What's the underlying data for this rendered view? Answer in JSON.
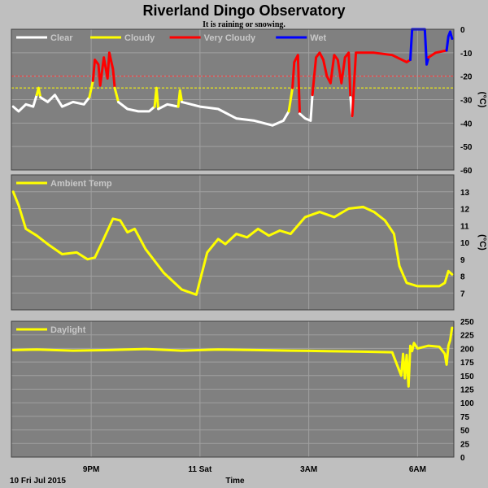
{
  "page": {
    "title": "Riverland Dingo Observatory",
    "subtitle": "It is raining or snowing.",
    "date_label": "10 Fri Jul 2015",
    "xlabel": "Time"
  },
  "colors": {
    "background": "#bfbfbf",
    "panel": "#808080",
    "grid": "#a0a0a0",
    "clear": "#ffffff",
    "cloudy": "#ffff00",
    "very_cloudy": "#ff0000",
    "wet": "#0000ff",
    "threshold_red": "#ff3333",
    "threshold_yellow": "#ffff00"
  },
  "chart_data": {
    "type": "line",
    "x_ticks": [
      {
        "hour": 21,
        "label": "9PM"
      },
      {
        "hour": 24,
        "label": "11 Sat"
      },
      {
        "hour": 27,
        "label": "3AM"
      },
      {
        "hour": 30,
        "label": "6AM"
      }
    ],
    "xlim": [
      18.8,
      31.0
    ],
    "grid": true,
    "panels": [
      {
        "id": "sky",
        "ylabel": "(°C)",
        "ylim": [
          -60,
          0
        ],
        "yticks": [
          0,
          -10,
          -20,
          -30,
          -40,
          -50,
          -60
        ],
        "thresholds": [
          {
            "value": -20,
            "color": "threshold_red"
          },
          {
            "value": -25,
            "color": "threshold_yellow"
          }
        ],
        "legend": [
          {
            "name": "Clear",
            "color": "clear"
          },
          {
            "name": "Cloudy",
            "color": "cloudy"
          },
          {
            "name": "Very Cloudy",
            "color": "very_cloudy"
          },
          {
            "name": "Wet",
            "color": "wet"
          }
        ],
        "series": [
          {
            "condition": "clear",
            "x": [
              18.85,
              19.0,
              19.2,
              19.4,
              19.5
            ],
            "y": [
              -33,
              -35,
              -32,
              -33,
              -28
            ]
          },
          {
            "condition": "cloudy",
            "x": [
              19.5,
              19.55,
              19.6
            ],
            "y": [
              -28,
              -25,
              -29
            ]
          },
          {
            "condition": "clear",
            "x": [
              19.6,
              19.8,
              20.0,
              20.2,
              20.5,
              20.8,
              20.95
            ],
            "y": [
              -29,
              -31,
              -28,
              -33,
              -31,
              -32,
              -29
            ]
          },
          {
            "condition": "cloudy",
            "x": [
              20.95,
              21.05
            ],
            "y": [
              -29,
              -22
            ]
          },
          {
            "condition": "very_cloudy",
            "x": [
              21.05,
              21.1,
              21.2,
              21.25,
              21.35,
              21.45,
              21.5,
              21.6,
              21.65
            ],
            "y": [
              -22,
              -13,
              -15,
              -24,
              -12,
              -21,
              -10,
              -17,
              -25
            ]
          },
          {
            "condition": "cloudy",
            "x": [
              21.65,
              21.75
            ],
            "y": [
              -25,
              -31
            ]
          },
          {
            "condition": "clear",
            "x": [
              21.75,
              22.0,
              22.3,
              22.6,
              22.75
            ],
            "y": [
              -31,
              -34,
              -35,
              -35,
              -33
            ]
          },
          {
            "condition": "cloudy",
            "x": [
              22.75,
              22.8,
              22.85
            ],
            "y": [
              -33,
              -25,
              -34
            ]
          },
          {
            "condition": "clear",
            "x": [
              22.85,
              23.1,
              23.4
            ],
            "y": [
              -34,
              -32,
              -33
            ]
          },
          {
            "condition": "cloudy",
            "x": [
              23.4,
              23.45,
              23.5
            ],
            "y": [
              -33,
              -26,
              -31
            ]
          },
          {
            "condition": "clear",
            "x": [
              23.5,
              24.0,
              24.5,
              25.0,
              25.5,
              26.0,
              26.3,
              26.45
            ],
            "y": [
              -31,
              -33,
              -34,
              -38,
              -39,
              -41,
              -39,
              -35
            ]
          },
          {
            "condition": "cloudy",
            "x": [
              26.45,
              26.55
            ],
            "y": [
              -35,
              -25
            ]
          },
          {
            "condition": "very_cloudy",
            "x": [
              26.55,
              26.6,
              26.7,
              26.75
            ],
            "y": [
              -25,
              -14,
              -11,
              -36
            ]
          },
          {
            "condition": "clear",
            "x": [
              26.75,
              26.9,
              27.05,
              27.1
            ],
            "y": [
              -36,
              -38,
              -39,
              -28
            ]
          },
          {
            "condition": "very_cloudy",
            "x": [
              27.1,
              27.2,
              27.3,
              27.4,
              27.5,
              27.6,
              27.7,
              27.8,
              27.9,
              28.0,
              28.1,
              28.15
            ],
            "y": [
              -28,
              -12,
              -10,
              -13,
              -20,
              -23,
              -11,
              -13,
              -23,
              -12,
              -10,
              -29
            ]
          },
          {
            "condition": "clear",
            "x": [
              28.15,
              28.2
            ],
            "y": [
              -29,
              -37
            ]
          },
          {
            "condition": "very_cloudy",
            "x": [
              28.2,
              28.3,
              28.8,
              29.3,
              29.7,
              29.8
            ],
            "y": [
              -37,
              -10,
              -10,
              -11,
              -14,
              -13
            ]
          },
          {
            "condition": "wet",
            "x": [
              29.8,
              29.85,
              30.2,
              30.25,
              30.3
            ],
            "y": [
              -13,
              0,
              0,
              -15,
              -12
            ]
          },
          {
            "condition": "very_cloudy",
            "x": [
              30.3,
              30.5,
              30.8
            ],
            "y": [
              -12,
              -10,
              -9
            ]
          },
          {
            "condition": "wet",
            "x": [
              30.8,
              30.85,
              30.9,
              30.95
            ],
            "y": [
              -9,
              -3,
              -1,
              -4
            ]
          }
        ]
      },
      {
        "id": "temp",
        "ylabel": "(°C)",
        "ylim": [
          6,
          14
        ],
        "yticks": [
          7,
          8,
          9,
          10,
          11,
          12,
          13
        ],
        "legend": [
          {
            "name": "Ambient Temp",
            "color": "cloudy"
          }
        ],
        "series": [
          {
            "condition": "cloudy",
            "x": [
              18.85,
              19.0,
              19.2,
              19.5,
              19.8,
              20.2,
              20.6,
              20.9,
              21.1,
              21.3,
              21.6,
              21.8,
              22.0,
              22.2,
              22.5,
              23.0,
              23.5,
              23.9,
              24.2,
              24.5,
              24.7,
              25.0,
              25.3,
              25.6,
              25.9,
              26.2,
              26.5,
              26.9,
              27.3,
              27.7,
              28.1,
              28.5,
              28.8,
              29.1,
              29.35,
              29.5,
              29.7,
              30.0,
              30.3,
              30.6,
              30.75,
              30.85,
              30.95
            ],
            "y": [
              13.0,
              12.2,
              10.8,
              10.4,
              9.9,
              9.3,
              9.4,
              9.0,
              9.1,
              10.0,
              11.4,
              11.3,
              10.6,
              10.8,
              9.6,
              8.2,
              7.2,
              6.9,
              9.4,
              10.2,
              9.9,
              10.5,
              10.3,
              10.8,
              10.4,
              10.7,
              10.5,
              11.5,
              11.8,
              11.5,
              12.0,
              12.1,
              11.8,
              11.3,
              10.5,
              8.6,
              7.6,
              7.4,
              7.4,
              7.4,
              7.6,
              8.3,
              8.1
            ]
          }
        ]
      },
      {
        "id": "daylight",
        "ylabel": "",
        "ylim": [
          0,
          250
        ],
        "yticks": [
          0,
          25,
          50,
          75,
          100,
          125,
          150,
          175,
          200,
          225,
          250
        ],
        "legend": [
          {
            "name": "Daylight",
            "color": "cloudy"
          }
        ],
        "series": [
          {
            "condition": "cloudy",
            "x": [
              18.85,
              19.5,
              20.5,
              21.5,
              22.5,
              23.5,
              24.5,
              25.5,
              26.5,
              27.5,
              28.5,
              29.3,
              29.55,
              29.6,
              29.65,
              29.7,
              29.75,
              29.8,
              29.85,
              29.9,
              30.0,
              30.3,
              30.6,
              30.75,
              30.8,
              30.85,
              30.9,
              30.95
            ],
            "y": [
              197,
              198,
              196,
              197,
              199,
              196,
              198,
              197,
              196,
              195,
              194,
              193,
              150,
              190,
              145,
              188,
              130,
              205,
              195,
              210,
              200,
              205,
              203,
              190,
              170,
              205,
              215,
              238
            ]
          }
        ]
      }
    ]
  }
}
